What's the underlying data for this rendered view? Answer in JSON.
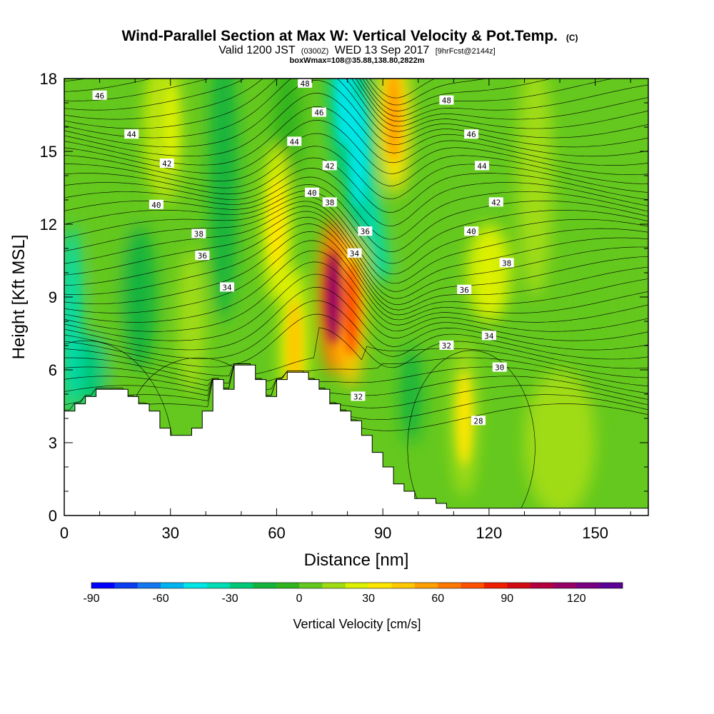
{
  "title": {
    "main": "Wind-Parallel Section at Max W: Vertical Velocity & Pot.Temp.",
    "main_suffix": "(C)",
    "valid_prefix": "Valid 1200 JST",
    "valid_z": "(0300Z)",
    "valid_date": "WED 13 Sep 2017",
    "valid_fcst": "[9hrFcst@2144z]",
    "box": "boxWmax=108@35.88,138.80,2822m"
  },
  "chart_data": {
    "type": "heatmap",
    "xlabel": "Distance [nm]",
    "ylabel": "Height [Kft MSL]",
    "xlim": [
      0,
      165
    ],
    "ylim": [
      0,
      18
    ],
    "x_ticks": [
      "0",
      "30",
      "60",
      "90",
      "120",
      "150"
    ],
    "y_ticks": [
      "0",
      "3",
      "6",
      "9",
      "12",
      "15",
      "18"
    ],
    "colorbar": {
      "label": "Vertical Velocity [cm/s]",
      "range": [
        -90,
        140
      ],
      "tick_labels": [
        "-90",
        "-60",
        "-30",
        "0",
        "30",
        "60",
        "90",
        "120"
      ],
      "colors": [
        "#0000ff",
        "#0a3cf0",
        "#1478f0",
        "#00b4f0",
        "#00e6e6",
        "#00dcb4",
        "#00c878",
        "#14b43c",
        "#32b41e",
        "#64c81e",
        "#a0dc14",
        "#dcf000",
        "#ffe600",
        "#ffc800",
        "#ffa000",
        "#ff7800",
        "#ff5000",
        "#f01e00",
        "#d20a14",
        "#b4003c",
        "#960064",
        "#780082",
        "#5a0096"
      ]
    },
    "velocity_features": [
      {
        "kind": "updraft",
        "x": 76,
        "z": 9,
        "w": 110
      },
      {
        "kind": "updraft",
        "x": 81,
        "z": 8.5,
        "w": 75
      },
      {
        "kind": "updraft",
        "x": 65,
        "z": 7,
        "w": 45
      },
      {
        "kind": "updraft",
        "x": 60,
        "z": 12,
        "w": 40
      },
      {
        "kind": "updraft",
        "x": 93,
        "z": 16.5,
        "w": 55
      },
      {
        "kind": "downdraft",
        "x": 83,
        "z": 15,
        "w": -45
      },
      {
        "kind": "downdraft",
        "x": 79,
        "z": 17.5,
        "w": -50
      },
      {
        "kind": "updraft",
        "x": 113,
        "z": 4,
        "w": 30
      },
      {
        "kind": "updraft",
        "x": 30,
        "z": 16,
        "w": 25
      }
    ],
    "terrain_kft": [
      [
        0,
        4.3
      ],
      [
        3,
        4.3
      ],
      [
        3,
        4.6
      ],
      [
        6,
        4.6
      ],
      [
        6,
        4.9
      ],
      [
        9,
        4.9
      ],
      [
        9,
        5.2
      ],
      [
        18,
        5.2
      ],
      [
        18,
        4.9
      ],
      [
        21,
        4.9
      ],
      [
        21,
        4.6
      ],
      [
        24,
        4.6
      ],
      [
        24,
        4.3
      ],
      [
        27,
        4.3
      ],
      [
        27,
        3.6
      ],
      [
        30,
        3.6
      ],
      [
        30,
        3.3
      ],
      [
        36,
        3.3
      ],
      [
        36,
        3.6
      ],
      [
        39,
        3.6
      ],
      [
        39,
        4.3
      ],
      [
        42,
        4.3
      ],
      [
        42,
        5.6
      ],
      [
        45,
        5.6
      ],
      [
        45,
        5.2
      ],
      [
        48,
        5.2
      ],
      [
        48,
        6.2
      ],
      [
        54,
        6.2
      ],
      [
        54,
        5.6
      ],
      [
        57,
        5.6
      ],
      [
        57,
        4.9
      ],
      [
        60,
        4.9
      ],
      [
        60,
        5.6
      ],
      [
        63,
        5.6
      ],
      [
        63,
        5.9
      ],
      [
        69,
        5.9
      ],
      [
        69,
        5.6
      ],
      [
        72,
        5.6
      ],
      [
        72,
        5.2
      ],
      [
        75,
        5.2
      ],
      [
        75,
        4.6
      ],
      [
        78,
        4.6
      ],
      [
        78,
        4.3
      ],
      [
        81,
        4.3
      ],
      [
        81,
        3.9
      ],
      [
        84,
        3.9
      ],
      [
        84,
        3.3
      ],
      [
        87,
        3.3
      ],
      [
        87,
        2.6
      ],
      [
        90,
        2.6
      ],
      [
        90,
        2.0
      ],
      [
        93,
        2.0
      ],
      [
        93,
        1.3
      ],
      [
        96,
        1.3
      ],
      [
        96,
        1.0
      ],
      [
        99,
        1.0
      ],
      [
        99,
        0.7
      ],
      [
        105,
        0.7
      ],
      [
        105,
        0.5
      ],
      [
        108,
        0.5
      ],
      [
        108,
        0.3
      ],
      [
        165,
        0.3
      ]
    ],
    "theta_contours": {
      "unit": "C",
      "interval": 1,
      "labels": [
        {
          "text": "46",
          "x": 10,
          "z": 17.3
        },
        {
          "text": "44",
          "x": 19,
          "z": 15.7
        },
        {
          "text": "42",
          "x": 29,
          "z": 14.5
        },
        {
          "text": "40",
          "x": 26,
          "z": 12.8
        },
        {
          "text": "38",
          "x": 38,
          "z": 11.6
        },
        {
          "text": "36",
          "x": 39,
          "z": 10.7
        },
        {
          "text": "34",
          "x": 46,
          "z": 9.4
        },
        {
          "text": "48",
          "x": 68,
          "z": 17.8
        },
        {
          "text": "46",
          "x": 72,
          "z": 16.6
        },
        {
          "text": "44",
          "x": 65,
          "z": 15.4
        },
        {
          "text": "42",
          "x": 75,
          "z": 14.4
        },
        {
          "text": "40",
          "x": 70,
          "z": 13.3
        },
        {
          "text": "38",
          "x": 75,
          "z": 12.9
        },
        {
          "text": "36",
          "x": 85,
          "z": 11.7
        },
        {
          "text": "34",
          "x": 82,
          "z": 10.8
        },
        {
          "text": "32",
          "x": 83,
          "z": 4.9
        },
        {
          "text": "48",
          "x": 108,
          "z": 17.1
        },
        {
          "text": "46",
          "x": 115,
          "z": 15.7
        },
        {
          "text": "44",
          "x": 118,
          "z": 14.4
        },
        {
          "text": "42",
          "x": 122,
          "z": 12.9
        },
        {
          "text": "40",
          "x": 115,
          "z": 11.7
        },
        {
          "text": "38",
          "x": 125,
          "z": 10.4
        },
        {
          "text": "36",
          "x": 113,
          "z": 9.3
        },
        {
          "text": "34",
          "x": 120,
          "z": 7.4
        },
        {
          "text": "32",
          "x": 108,
          "z": 7.0
        },
        {
          "text": "30",
          "x": 123,
          "z": 6.1
        },
        {
          "text": "28",
          "x": 117,
          "z": 3.9
        }
      ]
    }
  }
}
